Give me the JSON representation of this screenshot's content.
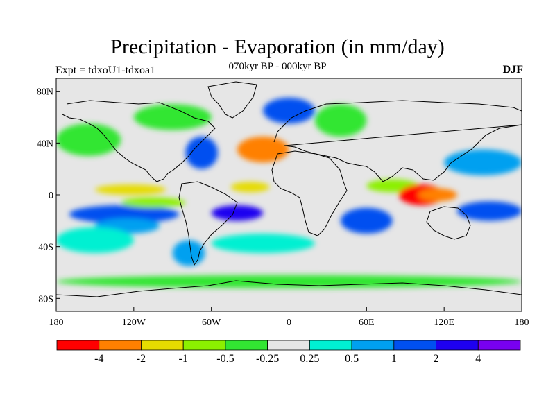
{
  "header": {
    "title": "Precipitation - Evaporation (in mm/day)",
    "subtitle": "070kyr BP - 000kyr BP",
    "experiment": "Expt = tdxoU1-tdxoa1",
    "season": "DJF"
  },
  "axes": {
    "lat_ticks": [
      "80N",
      "40N",
      "0",
      "40S",
      "80S"
    ],
    "lat_values": [
      80,
      40,
      0,
      -40,
      -80
    ],
    "lon_ticks": [
      "180",
      "120W",
      "60W",
      "0",
      "60E",
      "120E",
      "180"
    ],
    "lon_values": [
      -180,
      -120,
      -60,
      0,
      60,
      120,
      180
    ],
    "lat_range": [
      -90,
      90
    ],
    "lon_range": [
      -180,
      180
    ]
  },
  "colorbar": {
    "colors": [
      "#ff0000",
      "#ff8000",
      "#e6dc00",
      "#8cf000",
      "#32e632",
      "#e6e6e6",
      "#00f0d2",
      "#00a0f0",
      "#0050f0",
      "#1e00f0",
      "#7800f0"
    ],
    "labels": [
      "-4",
      "-2",
      "-1",
      "-0.5",
      "-0.25",
      "0.25",
      "0.5",
      "1",
      "2",
      "4"
    ]
  },
  "chart_data": {
    "type": "heatmap",
    "title": "Precipitation - Evaporation (in mm/day)",
    "subtitle": "070kyr BP - 000kyr BP",
    "levels": [
      -4,
      -2,
      -1,
      -0.5,
      -0.25,
      0.25,
      0.5,
      1,
      2,
      4
    ],
    "regions": [
      {
        "lon": [
          -170,
          -85
        ],
        "lat": [
          -22,
          -8
        ],
        "class": 8
      },
      {
        "lon": [
          -150,
          -100
        ],
        "lat": [
          -30,
          -18
        ],
        "class": 7
      },
      {
        "lon": [
          -180,
          -120
        ],
        "lat": [
          -45,
          -25
        ],
        "class": 6
      },
      {
        "lon": [
          -150,
          -95
        ],
        "lat": [
          0,
          8
        ],
        "class": 2
      },
      {
        "lon": [
          -130,
          -80
        ],
        "lat": [
          -10,
          -2
        ],
        "class": 3
      },
      {
        "lon": [
          -60,
          -20
        ],
        "lat": [
          -20,
          -8
        ],
        "class": 9
      },
      {
        "lon": [
          -45,
          -15
        ],
        "lat": [
          2,
          10
        ],
        "class": 2
      },
      {
        "lon": [
          -80,
          -55
        ],
        "lat": [
          20,
          45
        ],
        "class": 8
      },
      {
        "lon": [
          -40,
          0
        ],
        "lat": [
          25,
          45
        ],
        "class": 1
      },
      {
        "lon": [
          -20,
          20
        ],
        "lat": [
          55,
          75
        ],
        "class": 8
      },
      {
        "lon": [
          40,
          80
        ],
        "lat": [
          -30,
          -10
        ],
        "class": 8
      },
      {
        "lon": [
          60,
          100
        ],
        "lat": [
          2,
          12
        ],
        "class": 3
      },
      {
        "lon": [
          85,
          120
        ],
        "lat": [
          -8,
          8
        ],
        "class": 0
      },
      {
        "lon": [
          100,
          130
        ],
        "lat": [
          -5,
          5
        ],
        "class": 1
      },
      {
        "lon": [
          130,
          180
        ],
        "lat": [
          -20,
          -5
        ],
        "class": 8
      },
      {
        "lon": [
          120,
          180
        ],
        "lat": [
          15,
          35
        ],
        "class": 7
      },
      {
        "lon": [
          -180,
          -130
        ],
        "lat": [
          30,
          55
        ],
        "class": 4
      },
      {
        "lon": [
          -120,
          -60
        ],
        "lat": [
          50,
          70
        ],
        "class": 4
      },
      {
        "lon": [
          20,
          60
        ],
        "lat": [
          45,
          70
        ],
        "class": 4
      },
      {
        "lon": [
          -180,
          180
        ],
        "lat": [
          -72,
          -62
        ],
        "class": 4
      },
      {
        "lon": [
          -60,
          20
        ],
        "lat": [
          -45,
          -30
        ],
        "class": 6
      },
      {
        "lon": [
          -90,
          -65
        ],
        "lat": [
          -55,
          -35
        ],
        "class": 7
      }
    ]
  }
}
